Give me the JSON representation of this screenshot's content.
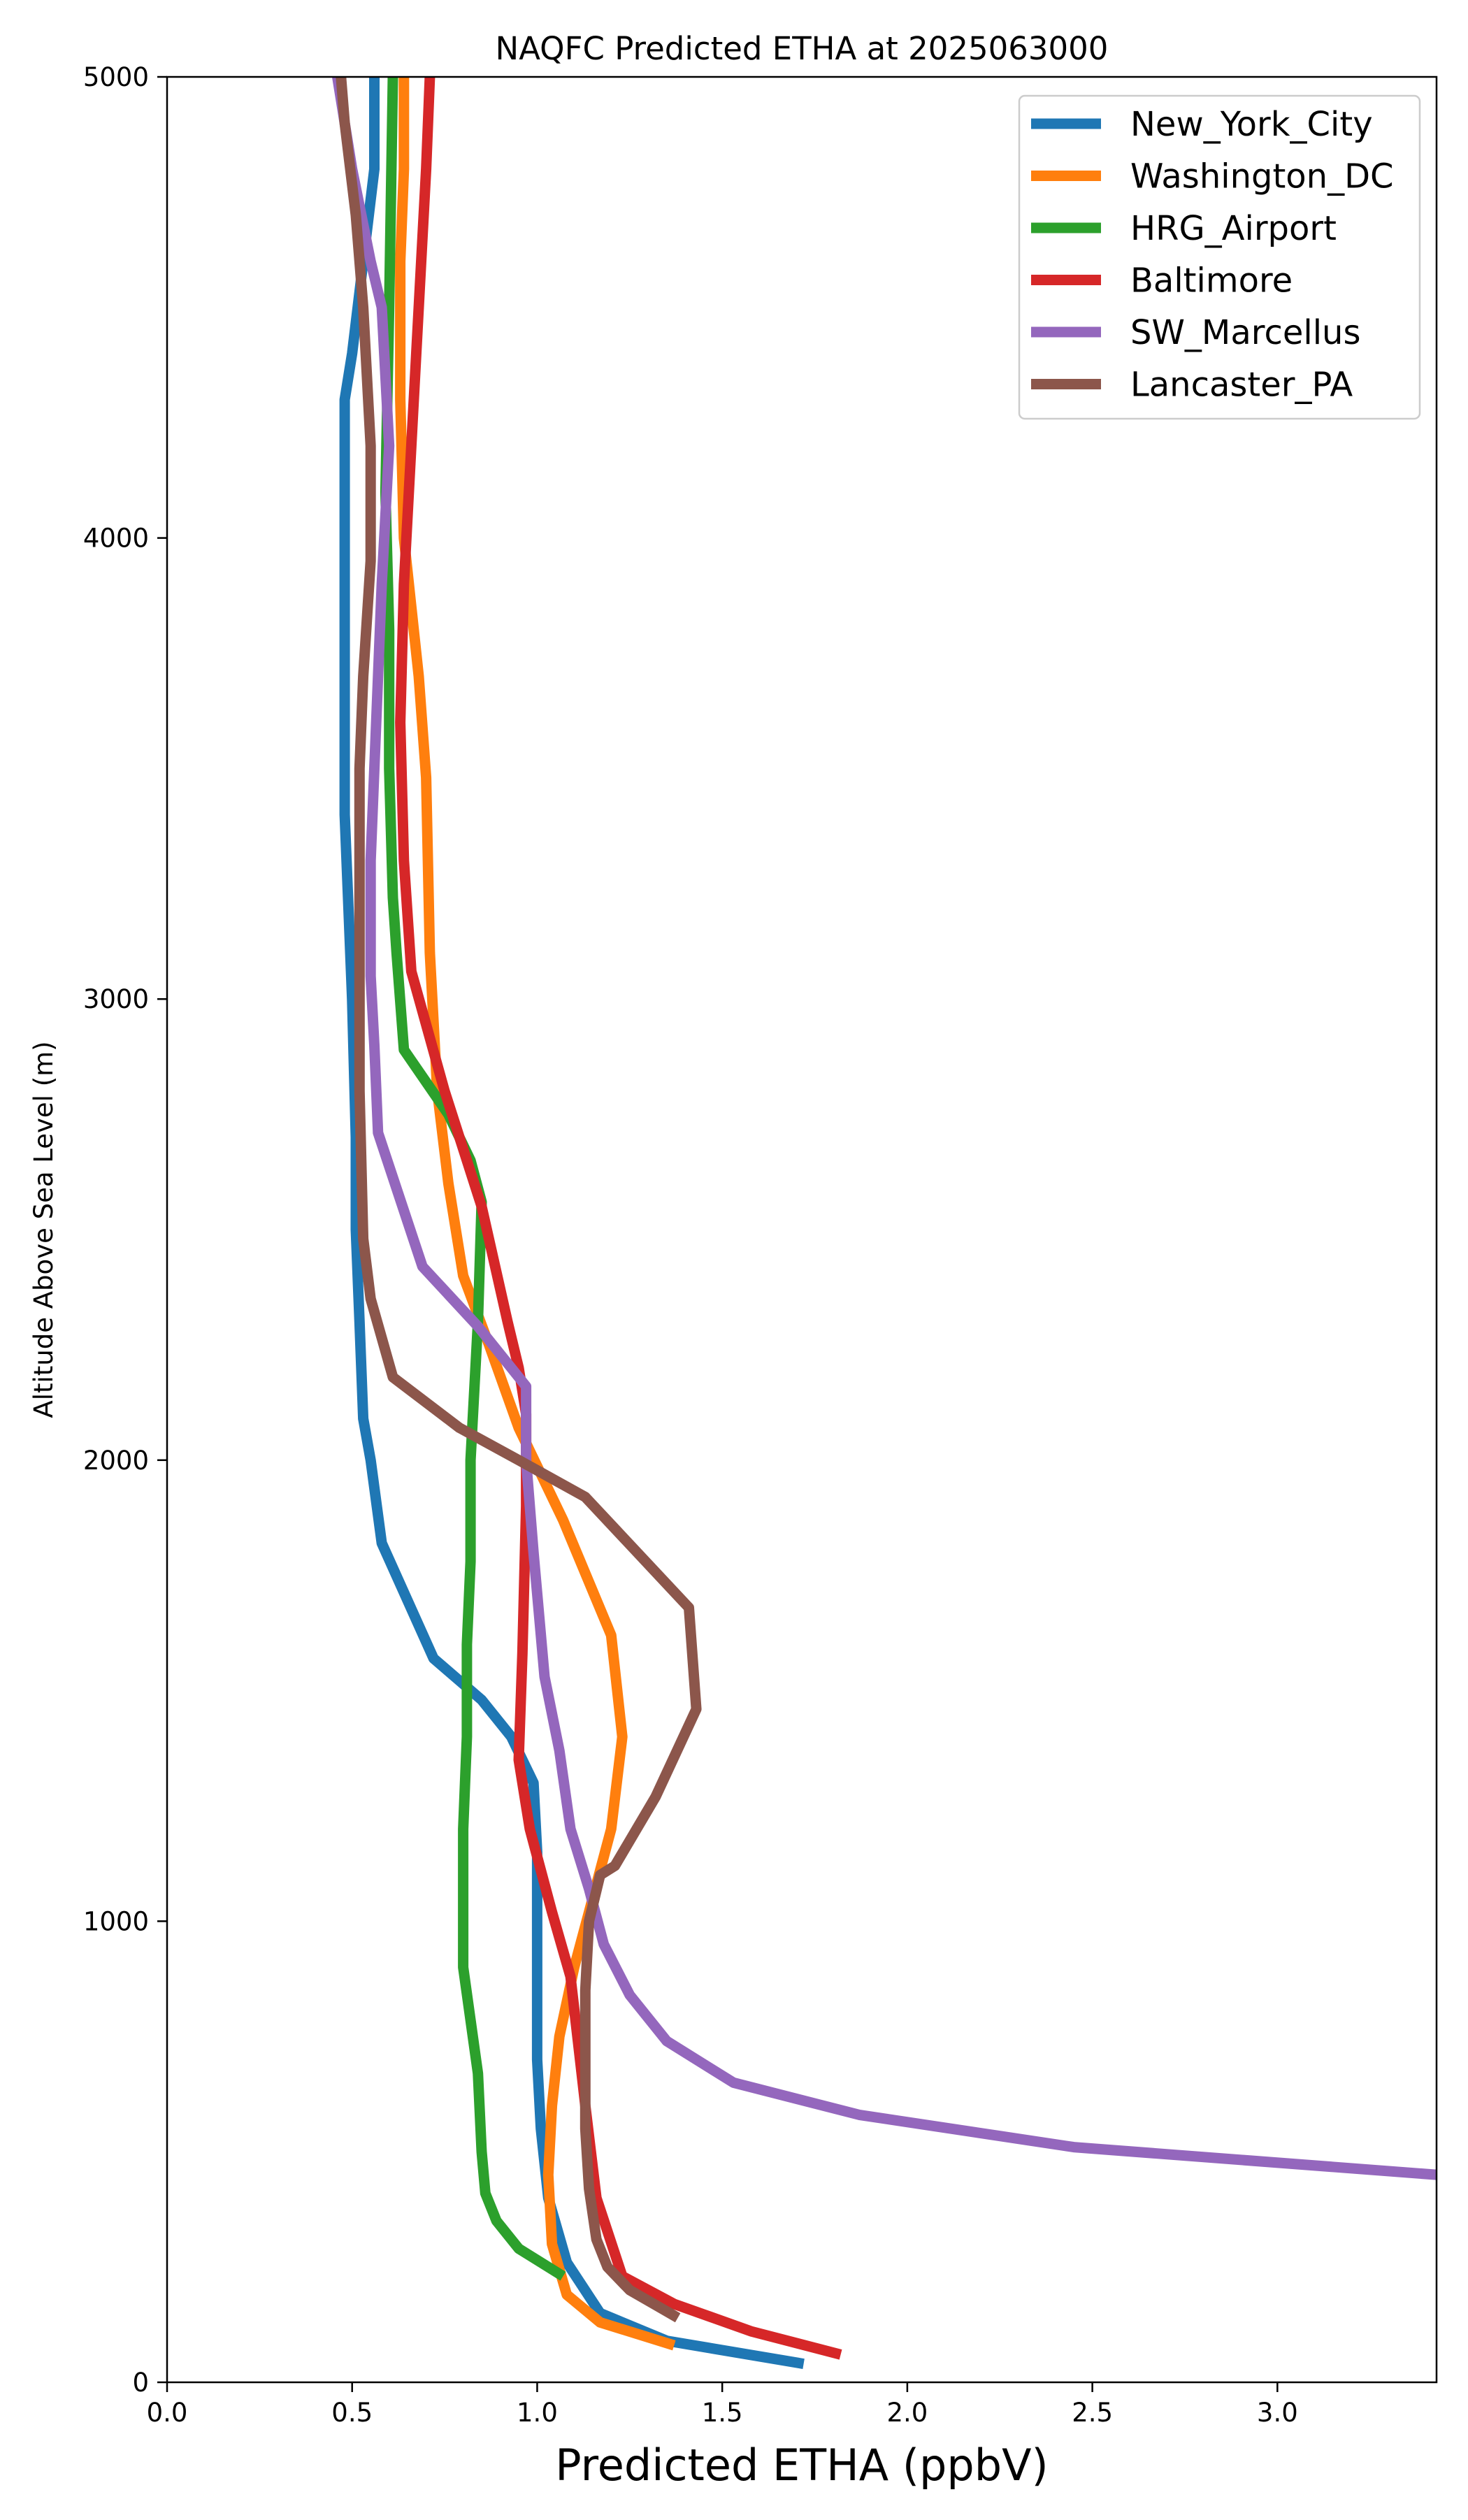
{
  "chart_data": {
    "type": "line",
    "title": "NAQFC Predicted ETHA at 2025063000",
    "xlabel": "Predicted ETHA (ppbV)",
    "ylabel": "Altitude Above Sea Level (m)",
    "xlim": [
      0,
      3.43
    ],
    "ylim": [
      0,
      5000
    ],
    "xticks": [
      "0.0",
      "0.5",
      "1.0",
      "1.5",
      "2.0",
      "2.5",
      "3.0"
    ],
    "xtick_values": [
      0,
      0.5,
      1.0,
      1.5,
      2.0,
      2.5,
      3.0
    ],
    "yticks": [
      "0",
      "1000",
      "2000",
      "3000",
      "4000",
      "5000"
    ],
    "ytick_values": [
      0,
      1000,
      2000,
      3000,
      4000,
      5000
    ],
    "grid": false,
    "legend_position": "top-right",
    "series": [
      {
        "name": "New_York_City",
        "color": "#1f77b4",
        "x": [
          1.72,
          1.35,
          1.17,
          1.08,
          1.03,
          1.01,
          1.0,
          1.0,
          1.0,
          0.99,
          0.93,
          0.85,
          0.72,
          0.58,
          0.55,
          0.53,
          0.52,
          0.51,
          0.51,
          0.5,
          0.48,
          0.48,
          0.48,
          0.48,
          0.5,
          0.53,
          0.56,
          0.56
        ],
        "y": [
          40,
          90,
          150,
          260,
          400,
          550,
          700,
          1000,
          1150,
          1300,
          1400,
          1480,
          1570,
          1820,
          2000,
          2090,
          2300,
          2500,
          2700,
          3000,
          3400,
          3850,
          4000,
          4300,
          4400,
          4600,
          4800,
          5000
        ]
      },
      {
        "name": "Washington_DC",
        "color": "#ff7f0e",
        "x": [
          1.37,
          1.17,
          1.08,
          1.04,
          1.03,
          1.04,
          1.06,
          1.1,
          1.15,
          1.2,
          1.23,
          1.2,
          1.07,
          0.95,
          0.87,
          0.8,
          0.76,
          0.73,
          0.71,
          0.7,
          0.68,
          0.64,
          0.63,
          0.63,
          0.64,
          0.64
        ],
        "y": [
          80,
          130,
          190,
          300,
          450,
          600,
          750,
          900,
          1050,
          1200,
          1400,
          1620,
          1870,
          2070,
          2250,
          2400,
          2600,
          2800,
          3100,
          3480,
          3700,
          4000,
          4300,
          4600,
          4800,
          5000
        ]
      },
      {
        "name": "HRG_Airport",
        "color": "#2ca02c",
        "x": [
          1.07,
          0.95,
          0.89,
          0.86,
          0.85,
          0.84,
          0.8,
          0.8,
          0.8,
          0.81,
          0.81,
          0.82,
          0.82,
          0.83,
          0.84,
          0.85,
          0.82,
          0.76,
          0.64,
          0.62,
          0.61,
          0.6,
          0.6,
          0.59,
          0.6,
          0.61
        ],
        "y": [
          230,
          290,
          350,
          410,
          500,
          670,
          900,
          1050,
          1200,
          1400,
          1600,
          1780,
          2000,
          2150,
          2300,
          2560,
          2650,
          2750,
          2890,
          3100,
          3220,
          3500,
          3800,
          4100,
          4500,
          5000
        ]
      },
      {
        "name": "Baltimore",
        "color": "#d62728",
        "x": [
          1.82,
          1.58,
          1.37,
          1.23,
          1.16,
          1.13,
          1.11,
          1.09,
          1.04,
          0.98,
          0.95,
          0.96,
          0.97,
          0.97,
          0.95,
          0.92,
          0.85,
          0.75,
          0.66,
          0.64,
          0.63,
          0.64,
          0.66,
          0.68,
          0.7,
          0.71,
          0.71
        ],
        "y": [
          60,
          110,
          170,
          230,
          400,
          600,
          740,
          880,
          1020,
          1200,
          1350,
          1580,
          1900,
          2100,
          2200,
          2300,
          2550,
          2800,
          3060,
          3300,
          3600,
          3900,
          4200,
          4500,
          4800,
          5000,
          5000
        ]
      },
      {
        "name": "SW_Marcellus",
        "color": "#9467bd",
        "x": [
          3.43,
          2.45,
          1.87,
          1.53,
          1.35,
          1.25,
          1.18,
          1.14,
          1.09,
          1.06,
          1.02,
          0.99,
          0.97,
          0.97,
          0.97,
          0.84,
          0.69,
          0.57,
          0.56,
          0.55,
          0.55,
          0.56,
          0.57,
          0.58,
          0.6,
          0.58,
          0.55,
          0.5,
          0.46
        ],
        "y": [
          450,
          510,
          580,
          650,
          740,
          840,
          950,
          1070,
          1200,
          1370,
          1530,
          1800,
          2000,
          2100,
          2160,
          2290,
          2420,
          2710,
          2900,
          3050,
          3300,
          3500,
          3700,
          3900,
          4200,
          4500,
          4600,
          4800,
          5000
        ]
      },
      {
        "name": "Lancaster_PA",
        "color": "#8c564b",
        "x": [
          1.38,
          1.25,
          1.19,
          1.16,
          1.14,
          1.13,
          1.13,
          1.13,
          1.14,
          1.17,
          1.21,
          1.32,
          1.43,
          1.41,
          1.13,
          0.95,
          0.79,
          0.61,
          0.55,
          0.53,
          0.52,
          0.52,
          0.52,
          0.52,
          0.53,
          0.55,
          0.55,
          0.53,
          0.51,
          0.48,
          0.47
        ],
        "y": [
          140,
          200,
          250,
          310,
          420,
          550,
          700,
          850,
          1000,
          1100,
          1120,
          1270,
          1460,
          1680,
          1920,
          2000,
          2070,
          2180,
          2350,
          2480,
          2800,
          3000,
          3200,
          3500,
          3700,
          3950,
          4200,
          4500,
          4700,
          4900,
          5000
        ]
      }
    ]
  }
}
